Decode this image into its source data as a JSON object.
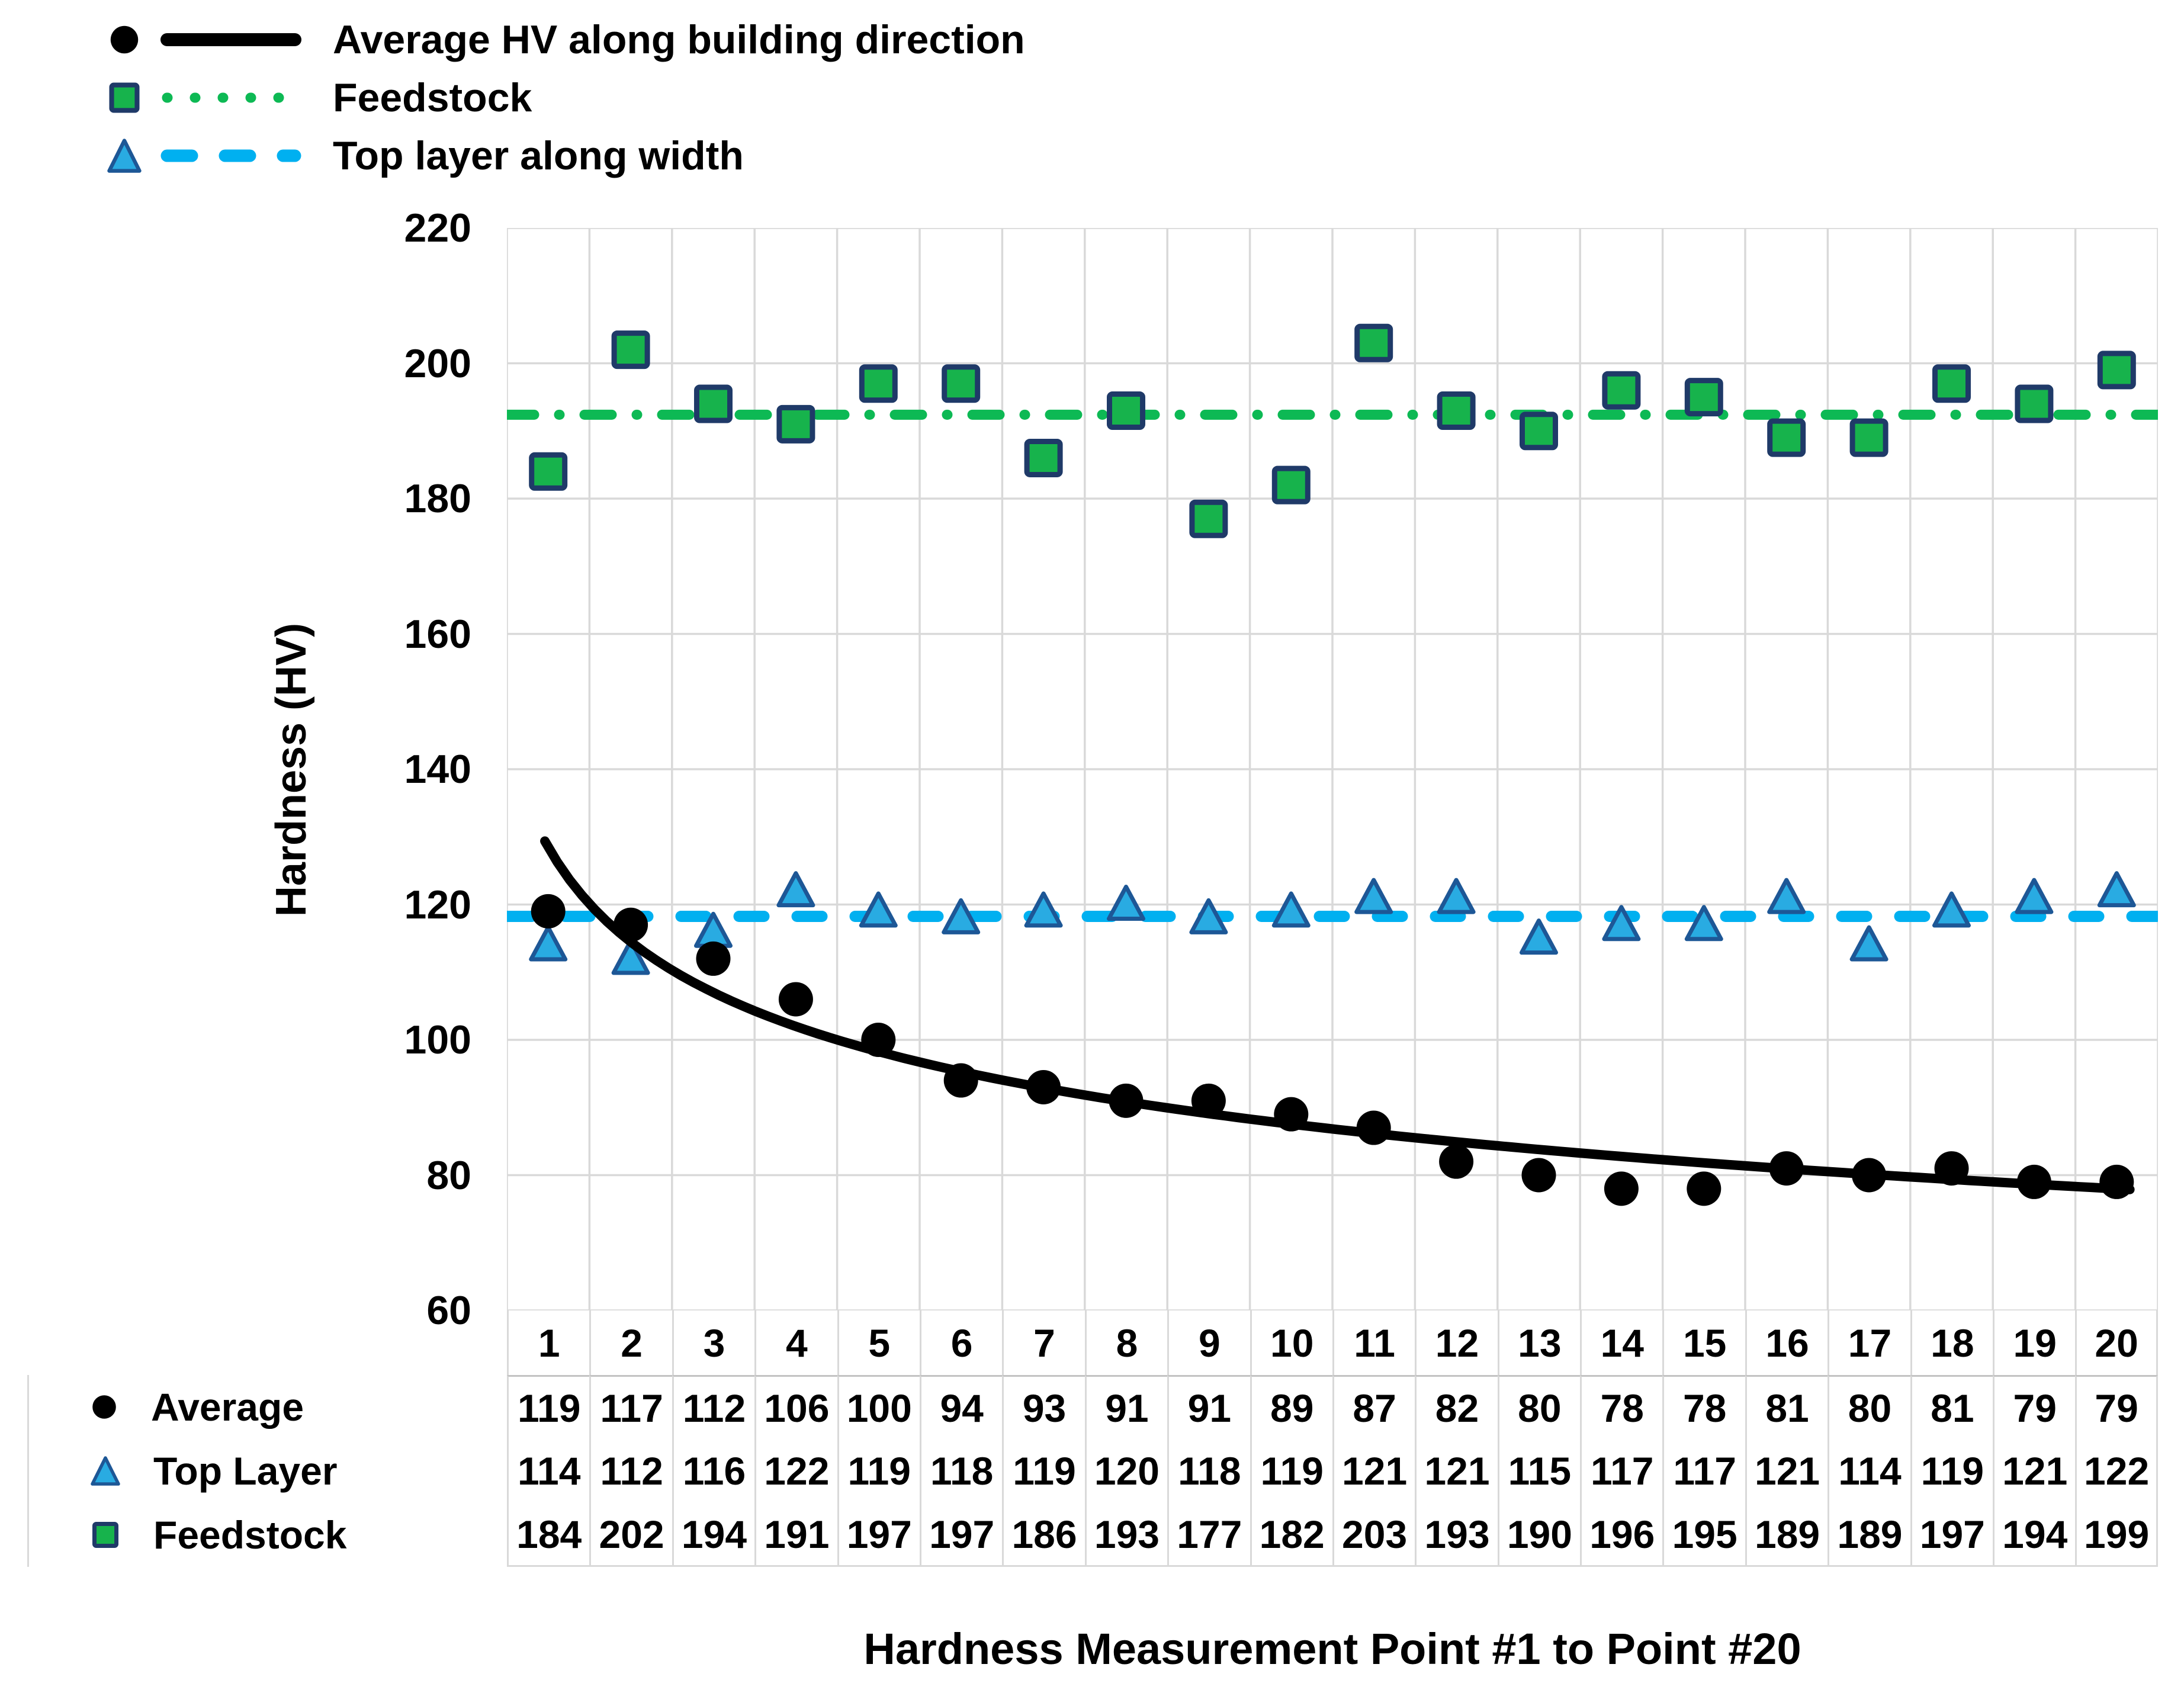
{
  "legend": {
    "items": [
      {
        "id": "average",
        "label": "Average HV along building direction",
        "marker": "circle",
        "line": "solid",
        "marker_color": "#000000",
        "line_color": "#000000"
      },
      {
        "id": "feedstock",
        "label": "Feedstock",
        "marker": "square",
        "line": "dotted",
        "marker_color": "#17b34c",
        "line_color": "#0db954"
      },
      {
        "id": "toplayer",
        "label": "Top layer along width",
        "marker": "triangle",
        "line": "dashed",
        "marker_color": "#29abe2",
        "line_color": "#00b0f0"
      }
    ]
  },
  "colors": {
    "green_fill": "#17b34c",
    "green_line": "#0db954",
    "square_border": "#1f3a68",
    "blue_fill": "#29abe2",
    "blue_line": "#00b0f0",
    "triangle_border": "#1d5796",
    "grid": "#d9d9d9",
    "black": "#000000"
  },
  "table": {
    "x_header": [
      "1",
      "2",
      "3",
      "4",
      "5",
      "6",
      "7",
      "8",
      "9",
      "10",
      "11",
      "12",
      "13",
      "14",
      "15",
      "16",
      "17",
      "18",
      "19",
      "20"
    ],
    "rows": [
      {
        "label": "Average",
        "marker": "circle",
        "values": [
          119,
          117,
          112,
          106,
          100,
          94,
          93,
          91,
          91,
          89,
          87,
          82,
          80,
          78,
          78,
          81,
          80,
          81,
          79,
          79
        ]
      },
      {
        "label": "Top Layer",
        "marker": "triangle",
        "values": [
          114,
          112,
          116,
          122,
          119,
          118,
          119,
          120,
          118,
          119,
          121,
          121,
          115,
          117,
          117,
          121,
          114,
          119,
          121,
          122
        ]
      },
      {
        "label": "Feedstock",
        "marker": "square",
        "values": [
          184,
          202,
          194,
          191,
          197,
          197,
          186,
          193,
          177,
          182,
          203,
          193,
          190,
          196,
          195,
          189,
          189,
          197,
          194,
          199
        ]
      }
    ]
  },
  "chart_data": {
    "type": "scatter",
    "title": "",
    "xlabel": "Hardness Measurement Point #1 to Point #20",
    "ylabel": "Hardness (HV)",
    "x": [
      1,
      2,
      3,
      4,
      5,
      6,
      7,
      8,
      9,
      10,
      11,
      12,
      13,
      14,
      15,
      16,
      17,
      18,
      19,
      20
    ],
    "xtick_labels": [
      "1",
      "2",
      "3",
      "4",
      "5",
      "6",
      "7",
      "8",
      "9",
      "10",
      "11",
      "12",
      "13",
      "14",
      "15",
      "16",
      "17",
      "18",
      "19",
      "20"
    ],
    "ylim": [
      60,
      220
    ],
    "ytick_step": 20,
    "yticks": [
      220,
      200,
      180,
      160,
      140,
      120,
      100,
      80,
      60
    ],
    "grid": true,
    "legend_position": "top-left",
    "series": [
      {
        "name": "Average HV along building direction",
        "short_name": "Average",
        "marker": "circle",
        "color": "#000000",
        "values": [
          119,
          117,
          112,
          106,
          100,
          94,
          93,
          91,
          91,
          89,
          87,
          82,
          80,
          78,
          78,
          81,
          80,
          81,
          79,
          79
        ],
        "trendline": {
          "type": "power",
          "a": 128.5,
          "k": -0.1667,
          "x_start": 0.96,
          "x_end": 20.3,
          "color": "#000000",
          "style": "solid"
        }
      },
      {
        "name": "Top layer along width",
        "short_name": "Top Layer",
        "marker": "triangle",
        "color": "#29abe2",
        "values": [
          114,
          112,
          116,
          122,
          119,
          118,
          119,
          120,
          118,
          119,
          121,
          121,
          115,
          117,
          117,
          121,
          114,
          119,
          121,
          122
        ],
        "mean_line": {
          "value": 118.25,
          "color": "#00b0f0",
          "style": "dashed"
        }
      },
      {
        "name": "Feedstock",
        "short_name": "Feedstock",
        "marker": "square",
        "color": "#17b34c",
        "values": [
          184,
          202,
          194,
          191,
          197,
          197,
          186,
          193,
          177,
          182,
          203,
          193,
          190,
          196,
          195,
          189,
          189,
          197,
          194,
          199
        ],
        "mean_line": {
          "value": 192.4,
          "color": "#0db954",
          "style": "dash-dot"
        }
      }
    ]
  }
}
